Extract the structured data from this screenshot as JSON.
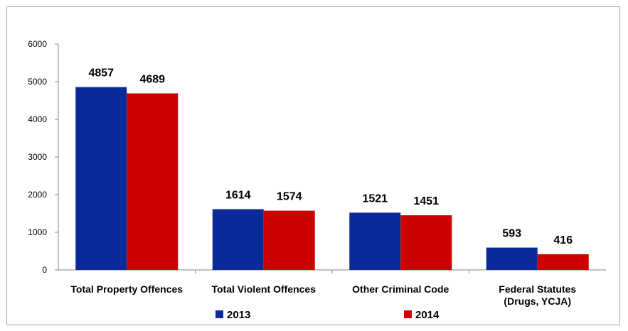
{
  "chart_data": {
    "type": "bar",
    "title": "",
    "xlabel": "",
    "ylabel": "",
    "categories": [
      [
        "Total Property Offences"
      ],
      [
        "Total Violent Offences"
      ],
      [
        "Other Criminal Code"
      ],
      [
        "Federal Statutes",
        "(Drugs, YCJA)"
      ]
    ],
    "series": [
      {
        "name": "2013",
        "color": "#0b2a9a",
        "values": [
          4857,
          1614,
          1521,
          593
        ]
      },
      {
        "name": "2014",
        "color": "#cc0000",
        "values": [
          4689,
          1574,
          1451,
          416
        ]
      }
    ],
    "ylim": [
      0,
      6000
    ],
    "yticks": [
      0,
      1000,
      2000,
      3000,
      4000,
      5000,
      6000
    ],
    "grid": false,
    "legend": "bottom"
  }
}
